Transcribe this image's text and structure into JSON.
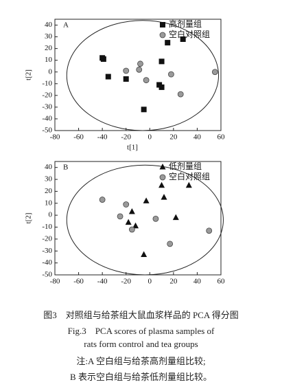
{
  "chart_data": [
    {
      "type": "scatter",
      "panel": "A",
      "ylabel": "t[2]",
      "xlabel": "t[1]",
      "xlim": [
        -80,
        60
      ],
      "xticks": [
        -80,
        -60,
        -40,
        -20,
        0,
        20,
        40,
        60
      ],
      "ylim": [
        -50,
        45
      ],
      "yticks": [
        40,
        30,
        20,
        10,
        0,
        -10,
        -20,
        -30,
        -40,
        -50
      ],
      "ellipse": {
        "cx": -6,
        "cy": -3,
        "rx": 64,
        "ry": 47
      },
      "series": [
        {
          "name": "高剂量组",
          "marker": "square",
          "color": "#111111",
          "x": [
            -40,
            -39,
            -35,
            -20,
            -5,
            8,
            10,
            10,
            15,
            28
          ],
          "values": [
            12,
            11,
            -4,
            -6,
            -32,
            -11,
            -13,
            9,
            25,
            28
          ]
        },
        {
          "name": "空白对照组",
          "marker": "circle",
          "color": "#9a9a9a",
          "x": [
            -20,
            -8,
            -9,
            -3,
            18,
            26,
            55
          ],
          "values": [
            1,
            7,
            2,
            -7,
            -2,
            -19,
            0
          ]
        }
      ]
    },
    {
      "type": "scatter",
      "panel": "B",
      "ylabel": "t[2]",
      "xlim": [
        -80,
        60
      ],
      "xticks": [
        -80,
        -60,
        -40,
        -20,
        0,
        20,
        40,
        60
      ],
      "ylim": [
        -50,
        45
      ],
      "yticks": [
        40,
        30,
        20,
        10,
        0,
        -10,
        -20,
        -30,
        -40,
        -50
      ],
      "ellipse": {
        "cx": -4,
        "cy": -4,
        "rx": 66,
        "ry": 46
      },
      "series": [
        {
          "name": "低剂量组",
          "marker": "triangle",
          "color": "#111111",
          "x": [
            -18,
            -15,
            -12,
            -5,
            -3,
            10,
            12,
            22,
            33
          ],
          "values": [
            -6,
            3,
            -9,
            -33,
            12,
            25,
            15,
            -2,
            25
          ]
        },
        {
          "name": "空白对照组",
          "marker": "circle",
          "color": "#9a9a9a",
          "x": [
            -40,
            -25,
            -20,
            -15,
            5,
            17,
            50
          ],
          "values": [
            13,
            -1,
            9,
            -12,
            -3,
            -24,
            -13
          ]
        }
      ]
    }
  ],
  "caption": [
    "图3　对照组与给茶组大鼠血浆样品的 PCA 得分图",
    "Fig.3　PCA scores of plasma samples of",
    "rats form control and tea groups",
    "注:A 空白组与给茶高剂量组比较;",
    "B 表示空白组与给茶低剂量组比较。"
  ]
}
